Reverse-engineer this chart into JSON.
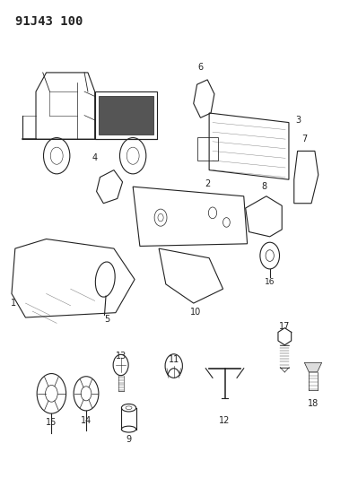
{
  "title": "91J43 100",
  "bg_color": "#ffffff",
  "line_color": "#222222",
  "fig_width": 3.89,
  "fig_height": 5.33,
  "dpi": 100
}
